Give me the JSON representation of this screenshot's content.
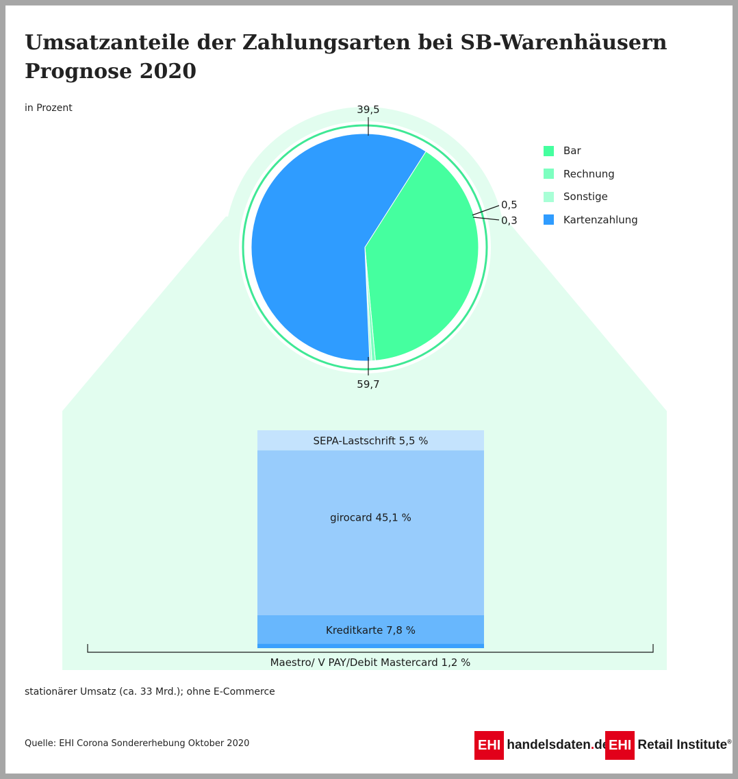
{
  "title_line1": "Umsatzanteile der Zahlungsarten bei SB-Warenhäusern",
  "title_line2": "Prognose 2020",
  "unit_label": "in Prozent",
  "footnote": "stationärer Umsatz (ca. 33 Mrd.); ohne E-Commerce",
  "source": "Quelle: EHI Corona Sondererhebung Oktober 2020",
  "logos": {
    "left_box": "EHI",
    "left_text": "handelsdaten",
    "left_dot": ".",
    "left_tld": "de",
    "right_box": "EHI",
    "right_text": "Retail Institute",
    "right_reg": "®"
  },
  "colors": {
    "bar": "#45ff9f",
    "rechnung": "#7dffc0",
    "sonstige": "#a8ffd6",
    "karte": "#2f9cff",
    "ring": "#3fe895",
    "zoom": "#e2fdef",
    "sepa": "#c4e3fd",
    "girocard": "#98ccfc",
    "kreditkarte": "#68b7fd",
    "maestro": "#3aa0fd",
    "brand": "#e2001a"
  },
  "chart_data": [
    {
      "type": "pie",
      "slices": [
        {
          "name": "Bar",
          "value": 39.5,
          "label": "39,5",
          "color": "#45ff9f"
        },
        {
          "name": "Rechnung",
          "value": 0.5,
          "label": "0,5",
          "color": "#7dffc0"
        },
        {
          "name": "Sonstige",
          "value": 0.3,
          "label": "0,3",
          "color": "#a8ffd6"
        },
        {
          "name": "Kartenzahlung",
          "value": 59.7,
          "label": "59,7",
          "color": "#2f9cff"
        }
      ],
      "legend": [
        "Bar",
        "Rechnung",
        "Sonstige",
        "Kartenzahlung"
      ],
      "legend_position": "right"
    },
    {
      "type": "bar",
      "stacked": true,
      "segments": [
        {
          "name": "SEPA-Lastschrift",
          "value": 5.5,
          "label": "SEPA-Lastschrift 5,5 %"
        },
        {
          "name": "girocard",
          "value": 45.1,
          "label": "girocard 45,1 %"
        },
        {
          "name": "Kreditkarte",
          "value": 7.8,
          "label": "Kreditkarte 7,8 %"
        },
        {
          "name": "Maestro/ V PAY/Debit Mastercard",
          "value": 1.2,
          "label": "Maestro/ V PAY/Debit Mastercard 1,2 %"
        }
      ]
    }
  ]
}
